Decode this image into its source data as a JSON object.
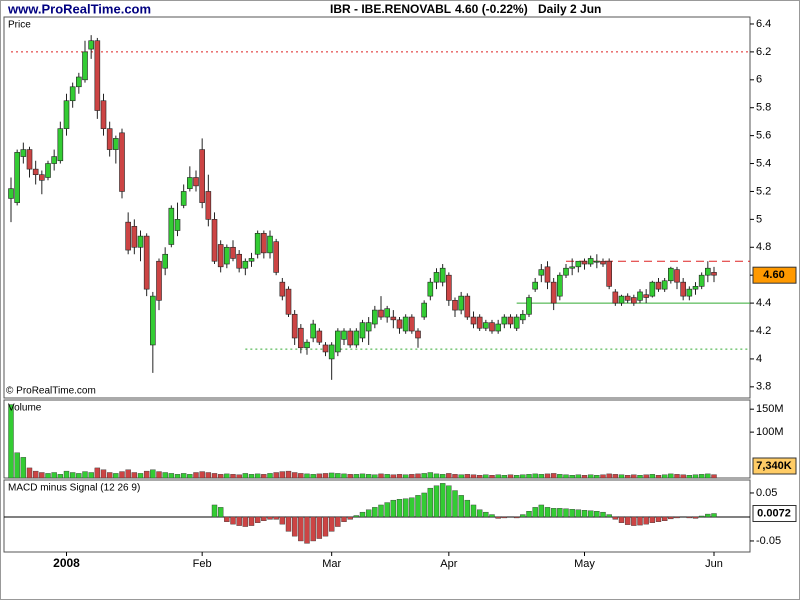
{
  "header": {
    "site": "www.ProRealTime.com",
    "symbol": "IBR - IBE.RENOVABL",
    "quote": "4.60 (-0.22%)",
    "period": "Daily  2 Jun"
  },
  "chart_data": [
    {
      "type": "candlestick",
      "title": "Price",
      "footer": "© ProRealTime.com",
      "categories": [
        null,
        null,
        null,
        null,
        null,
        null,
        null,
        null,
        null,
        "2008",
        null,
        null,
        null,
        null,
        null,
        null,
        null,
        null,
        null,
        null,
        null,
        null,
        null,
        null,
        null,
        null,
        null,
        null,
        null,
        null,
        null,
        "Feb",
        null,
        null,
        null,
        null,
        null,
        null,
        null,
        null,
        null,
        null,
        null,
        null,
        null,
        null,
        null,
        null,
        null,
        null,
        null,
        null,
        "Mar",
        null,
        null,
        null,
        null,
        null,
        null,
        null,
        null,
        null,
        null,
        null,
        null,
        null,
        null,
        null,
        null,
        null,
        null,
        "Apr",
        null,
        null,
        null,
        null,
        null,
        null,
        null,
        null,
        null,
        null,
        null,
        null,
        null,
        null,
        null,
        null,
        null,
        null,
        null,
        null,
        null,
        "May",
        null,
        null,
        null,
        null,
        null,
        null,
        null,
        null,
        null,
        null,
        null,
        null,
        null,
        null,
        null,
        null,
        null,
        null,
        null,
        null,
        "Jun"
      ],
      "ohlc": [
        [
          5.15,
          5.3,
          4.98,
          5.22
        ],
        [
          5.12,
          5.5,
          5.1,
          5.48
        ],
        [
          5.45,
          5.55,
          5.4,
          5.5
        ],
        [
          5.5,
          5.52,
          5.3,
          5.36
        ],
        [
          5.36,
          5.42,
          5.25,
          5.32
        ],
        [
          5.32,
          5.35,
          5.18,
          5.28
        ],
        [
          5.3,
          5.42,
          5.28,
          5.4
        ],
        [
          5.4,
          5.5,
          5.35,
          5.45
        ],
        [
          5.42,
          5.7,
          5.4,
          5.65
        ],
        [
          5.65,
          5.9,
          5.6,
          5.85
        ],
        [
          5.85,
          5.98,
          5.8,
          5.95
        ],
        [
          5.95,
          6.05,
          5.9,
          6.02
        ],
        [
          6.0,
          6.28,
          5.98,
          6.2
        ],
        [
          6.22,
          6.32,
          6.15,
          6.28
        ],
        [
          6.28,
          6.3,
          5.72,
          5.78
        ],
        [
          5.85,
          5.9,
          5.6,
          5.65
        ],
        [
          5.65,
          5.7,
          5.45,
          5.5
        ],
        [
          5.5,
          5.6,
          5.4,
          5.58
        ],
        [
          5.62,
          5.65,
          5.15,
          5.2
        ],
        [
          4.98,
          5.05,
          4.75,
          4.78
        ],
        [
          4.95,
          5.0,
          4.75,
          4.8
        ],
        [
          4.8,
          4.92,
          4.7,
          4.88
        ],
        [
          4.88,
          4.9,
          4.45,
          4.5
        ],
        [
          4.1,
          4.48,
          3.9,
          4.45
        ],
        [
          4.7,
          4.72,
          4.35,
          4.42
        ],
        [
          4.65,
          4.8,
          4.6,
          4.75
        ],
        [
          4.82,
          5.1,
          4.8,
          5.08
        ],
        [
          4.92,
          5.12,
          4.88,
          5.0
        ],
        [
          5.1,
          5.25,
          5.08,
          5.2
        ],
        [
          5.22,
          5.38,
          5.2,
          5.3
        ],
        [
          5.3,
          5.35,
          5.2,
          5.24
        ],
        [
          5.5,
          5.58,
          5.08,
          5.12
        ],
        [
          5.2,
          5.32,
          4.95,
          5.0
        ],
        [
          5.0,
          5.05,
          4.68,
          4.7
        ],
        [
          4.82,
          4.85,
          4.62,
          4.66
        ],
        [
          4.68,
          4.82,
          4.65,
          4.8
        ],
        [
          4.8,
          4.85,
          4.7,
          4.72
        ],
        [
          4.75,
          4.78,
          4.62,
          4.65
        ],
        [
          4.65,
          4.72,
          4.6,
          4.7
        ],
        [
          4.7,
          4.76,
          4.66,
          4.72
        ],
        [
          4.75,
          4.92,
          4.72,
          4.9
        ],
        [
          4.9,
          4.92,
          4.72,
          4.76
        ],
        [
          4.76,
          4.92,
          4.72,
          4.88
        ],
        [
          4.84,
          4.86,
          4.6,
          4.62
        ],
        [
          4.55,
          4.58,
          4.42,
          4.45
        ],
        [
          4.5,
          4.52,
          4.3,
          4.32
        ],
        [
          4.32,
          4.35,
          4.1,
          4.15
        ],
        [
          4.22,
          4.25,
          4.04,
          4.08
        ],
        [
          4.08,
          4.14,
          4.03,
          4.12
        ],
        [
          4.15,
          4.28,
          4.12,
          4.25
        ],
        [
          4.2,
          4.22,
          4.1,
          4.12
        ],
        [
          4.1,
          4.12,
          4.02,
          4.05
        ],
        [
          4.0,
          4.12,
          3.85,
          4.1
        ],
        [
          4.05,
          4.22,
          4.02,
          4.2
        ],
        [
          4.14,
          4.22,
          4.1,
          4.2
        ],
        [
          4.2,
          4.22,
          4.08,
          4.1
        ],
        [
          4.1,
          4.22,
          4.08,
          4.2
        ],
        [
          4.15,
          4.28,
          4.12,
          4.26
        ],
        [
          4.2,
          4.3,
          4.1,
          4.26
        ],
        [
          4.25,
          4.38,
          4.22,
          4.35
        ],
        [
          4.35,
          4.45,
          4.28,
          4.3
        ],
        [
          4.3,
          4.38,
          4.26,
          4.36
        ],
        [
          4.3,
          4.35,
          4.22,
          4.28
        ],
        [
          4.28,
          4.3,
          4.18,
          4.22
        ],
        [
          4.2,
          4.32,
          4.18,
          4.3
        ],
        [
          4.3,
          4.32,
          4.18,
          4.2
        ],
        [
          4.2,
          4.22,
          4.08,
          4.15
        ],
        [
          4.3,
          4.42,
          4.28,
          4.4
        ],
        [
          4.45,
          4.58,
          4.42,
          4.55
        ],
        [
          4.55,
          4.65,
          4.5,
          4.62
        ],
        [
          4.55,
          4.68,
          4.52,
          4.65
        ],
        [
          4.6,
          4.62,
          4.38,
          4.42
        ],
        [
          4.42,
          4.44,
          4.3,
          4.35
        ],
        [
          4.35,
          4.48,
          4.32,
          4.45
        ],
        [
          4.45,
          4.47,
          4.28,
          4.3
        ],
        [
          4.3,
          4.34,
          4.22,
          4.25
        ],
        [
          4.3,
          4.32,
          4.2,
          4.22
        ],
        [
          4.22,
          4.28,
          4.2,
          4.26
        ],
        [
          4.26,
          4.28,
          4.18,
          4.2
        ],
        [
          4.2,
          4.28,
          4.18,
          4.25
        ],
        [
          4.25,
          4.32,
          4.22,
          4.3
        ],
        [
          4.3,
          4.32,
          4.22,
          4.25
        ],
        [
          4.22,
          4.32,
          4.2,
          4.3
        ],
        [
          4.28,
          4.35,
          4.25,
          4.32
        ],
        [
          4.32,
          4.46,
          4.3,
          4.44
        ],
        [
          4.5,
          4.58,
          4.48,
          4.55
        ],
        [
          4.6,
          4.68,
          4.55,
          4.64
        ],
        [
          4.66,
          4.7,
          4.5,
          4.55
        ],
        [
          4.55,
          4.58,
          4.35,
          4.4
        ],
        [
          4.45,
          4.62,
          4.42,
          4.6
        ],
        [
          4.6,
          4.68,
          4.58,
          4.65
        ],
        [
          4.65,
          4.72,
          4.6,
          4.66
        ],
        [
          4.66,
          4.7,
          4.62,
          4.7
        ],
        [
          4.7,
          4.72,
          4.64,
          4.68
        ],
        [
          4.68,
          4.74,
          4.66,
          4.72
        ],
        [
          4.7,
          4.75,
          4.65,
          4.7
        ],
        [
          4.7,
          4.72,
          4.66,
          4.68
        ],
        [
          4.7,
          4.72,
          4.5,
          4.52
        ],
        [
          4.48,
          4.5,
          4.38,
          4.4
        ],
        [
          4.4,
          4.46,
          4.38,
          4.45
        ],
        [
          4.45,
          4.47,
          4.4,
          4.42
        ],
        [
          4.44,
          4.46,
          4.38,
          4.4
        ],
        [
          4.42,
          4.5,
          4.4,
          4.48
        ],
        [
          4.46,
          4.5,
          4.4,
          4.44
        ],
        [
          4.45,
          4.56,
          4.44,
          4.55
        ],
        [
          4.55,
          4.58,
          4.48,
          4.5
        ],
        [
          4.5,
          4.58,
          4.48,
          4.56
        ],
        [
          4.56,
          4.66,
          4.54,
          4.65
        ],
        [
          4.64,
          4.66,
          4.5,
          4.55
        ],
        [
          4.55,
          4.58,
          4.42,
          4.45
        ],
        [
          4.45,
          4.52,
          4.42,
          4.5
        ],
        [
          4.5,
          4.55,
          4.46,
          4.52
        ],
        [
          4.52,
          4.62,
          4.5,
          4.6
        ],
        [
          4.6,
          4.7,
          4.55,
          4.65
        ],
        [
          4.62,
          4.66,
          4.55,
          4.6
        ]
      ],
      "up_color": "#33cc33",
      "down_color": "#cc4444",
      "ylim": [
        3.72,
        6.45
      ],
      "yticks": [
        3.8,
        4,
        4.2,
        4.4,
        4.6,
        4.8,
        5,
        5.2,
        5.4,
        5.6,
        5.8,
        6,
        6.2,
        6.4
      ],
      "last_label": "4.60",
      "last_color": "#ff9900",
      "levels": [
        {
          "value": 6.2,
          "color": "#dd2222",
          "style": "dotted",
          "start": 0
        },
        {
          "value": 4.7,
          "color": "#dd2222",
          "style": "dashed",
          "start": 90
        },
        {
          "value": 4.4,
          "color": "#33aa33",
          "style": "solid",
          "start": 82
        },
        {
          "value": 4.07,
          "color": "#33aa33",
          "style": "dotted",
          "start": 38
        }
      ]
    },
    {
      "type": "bar",
      "title": "Volume",
      "title_color": "#cc3333",
      "color_by": "candle",
      "values": [
        160,
        55,
        45,
        22,
        15,
        12,
        10,
        12,
        8,
        15,
        12,
        10,
        14,
        12,
        22,
        18,
        12,
        10,
        14,
        18,
        12,
        10,
        15,
        18,
        14,
        12,
        10,
        8,
        10,
        8,
        12,
        14,
        12,
        10,
        8,
        9,
        8,
        7,
        10,
        8,
        9,
        8,
        10,
        12,
        14,
        15,
        12,
        10,
        9,
        8,
        9,
        10,
        11,
        10,
        9,
        8,
        8,
        9,
        8,
        7,
        9,
        8,
        7,
        8,
        7,
        8,
        9,
        10,
        12,
        9,
        8,
        10,
        8,
        7,
        8,
        7,
        6,
        7,
        6,
        7,
        6,
        7,
        6,
        7,
        8,
        9,
        8,
        9,
        10,
        8,
        7,
        6,
        7,
        6,
        7,
        6,
        7,
        9,
        8,
        7,
        6,
        7,
        6,
        7,
        8,
        6,
        7,
        9,
        8,
        7,
        6,
        7,
        8,
        9,
        7.34
      ],
      "ylim": [
        0,
        170
      ],
      "yticks": [
        {
          "value": 100,
          "label": "100M"
        },
        {
          "value": 150,
          "label": "150M"
        }
      ],
      "last_label": "7,340K",
      "last_color": "#ffcc66"
    },
    {
      "type": "bar",
      "title": "MACD minus Signal (12 26 9)",
      "title_color": "#33aa33",
      "color_by": "sign",
      "zero_line": true,
      "up_color": "#33cc33",
      "down_color": "#cc4444",
      "values": [
        null,
        null,
        null,
        null,
        null,
        null,
        null,
        null,
        null,
        null,
        null,
        null,
        null,
        null,
        null,
        null,
        null,
        null,
        null,
        null,
        null,
        null,
        null,
        null,
        null,
        null,
        null,
        null,
        null,
        null,
        null,
        null,
        null,
        0.025,
        0.02,
        -0.01,
        -0.015,
        -0.018,
        -0.02,
        -0.018,
        -0.012,
        -0.008,
        -0.005,
        -0.005,
        -0.015,
        -0.03,
        -0.04,
        -0.05,
        -0.055,
        -0.05,
        -0.045,
        -0.04,
        -0.03,
        -0.02,
        -0.01,
        -0.005,
        0.003,
        0.01,
        0.015,
        0.02,
        0.025,
        0.03,
        0.035,
        0.037,
        0.038,
        0.04,
        0.045,
        0.05,
        0.06,
        0.065,
        0.07,
        0.065,
        0.055,
        0.045,
        0.035,
        0.025,
        0.015,
        0.01,
        0.005,
        -0.003,
        -0.002,
        0.0,
        -0.002,
        0.005,
        0.012,
        0.02,
        0.025,
        0.02,
        0.018,
        0.018,
        0.017,
        0.016,
        0.015,
        0.014,
        0.013,
        0.012,
        0.01,
        0.005,
        -0.005,
        -0.012,
        -0.016,
        -0.018,
        -0.017,
        -0.015,
        -0.012,
        -0.01,
        -0.008,
        -0.004,
        -0.002,
        0.0,
        -0.002,
        -0.003,
        0.002,
        0.006,
        0.0072
      ],
      "ylim": [
        -0.073,
        0.077
      ],
      "yticks": [
        -0.05,
        0.05
      ],
      "last_label": "0.0072",
      "last_color": "#ffffff"
    }
  ]
}
